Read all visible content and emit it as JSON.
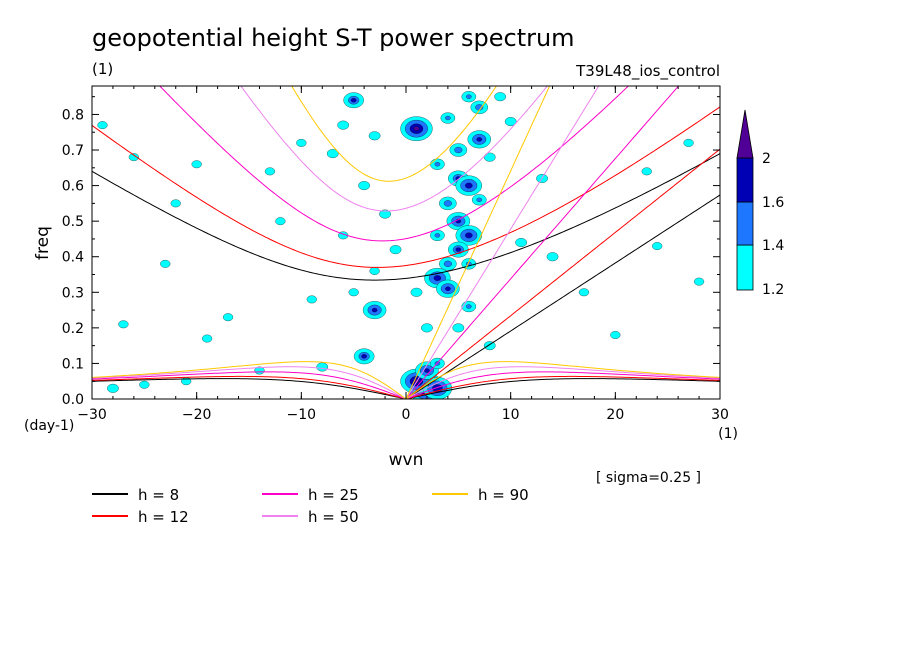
{
  "chart_data": {
    "type": "contour",
    "title": "geopotential height S-T power spectrum",
    "subtitle_left": "(1)",
    "subtitle_right": "T39L48_ios_control",
    "xlabel": "wvn",
    "ylabel": "freq",
    "x_unit": "(1)",
    "y_unit": "(day-1)",
    "sigma_note": "[ sigma=0.25 ]",
    "xlim": [
      -30,
      30
    ],
    "ylim": [
      0,
      0.88
    ],
    "x_ticks": [
      -30,
      -20,
      -10,
      0,
      10,
      20,
      30
    ],
    "y_ticks": [
      0.0,
      0.1,
      0.2,
      0.3,
      0.4,
      0.5,
      0.6,
      0.7,
      0.8
    ],
    "x_tick_labels": [
      "−30",
      "−20",
      "−10",
      "0",
      "10",
      "20",
      "30"
    ],
    "y_tick_labels": [
      "0.0",
      "0.1",
      "0.2",
      "0.3",
      "0.4",
      "0.5",
      "0.6",
      "0.7",
      "0.8"
    ],
    "colorbar": {
      "levels": [
        "1.2",
        "1.4",
        "1.6",
        "2"
      ],
      "colors": [
        "#00ffff",
        "#1e78ff",
        "#0000b4",
        "#500096"
      ]
    },
    "dispersion_curves": [
      {
        "name": "h =  8",
        "h": 8,
        "color": "#000000"
      },
      {
        "name": "h = 12",
        "h": 12,
        "color": "#ff0000"
      },
      {
        "name": "h = 25",
        "h": 25,
        "color": "#ff00c8"
      },
      {
        "name": "h = 50",
        "h": 50,
        "color": "#ee82ee"
      },
      {
        "name": "h = 90",
        "h": 90,
        "color": "#ffc800"
      }
    ],
    "spectral_peaks": [
      {
        "wvn": 2,
        "freq": 0.03,
        "level": 2.2
      },
      {
        "wvn": 1,
        "freq": 0.05,
        "level": 2.0
      },
      {
        "wvn": 2,
        "freq": 0.08,
        "level": 1.7
      },
      {
        "wvn": 3,
        "freq": 0.03,
        "level": 1.9
      },
      {
        "wvn": -4,
        "freq": 0.12,
        "level": 1.6
      },
      {
        "wvn": -3,
        "freq": 0.25,
        "level": 1.7
      },
      {
        "wvn": 1,
        "freq": 0.76,
        "level": 2.0
      },
      {
        "wvn": -5,
        "freq": 0.84,
        "level": 1.6
      },
      {
        "wvn": 3,
        "freq": 0.34,
        "level": 1.8
      },
      {
        "wvn": 4,
        "freq": 0.31,
        "level": 1.7
      },
      {
        "wvn": 5,
        "freq": 0.5,
        "level": 1.7
      },
      {
        "wvn": 6,
        "freq": 0.46,
        "level": 1.8
      },
      {
        "wvn": 7,
        "freq": 0.73,
        "level": 1.7
      },
      {
        "wvn": 7,
        "freq": 0.82,
        "level": 1.5
      },
      {
        "wvn": 5,
        "freq": 0.62,
        "level": 1.6
      },
      {
        "wvn": 6,
        "freq": 0.6,
        "level": 1.8
      },
      {
        "wvn": 5,
        "freq": 0.42,
        "level": 1.6
      },
      {
        "wvn": 4,
        "freq": 0.38,
        "level": 1.5
      },
      {
        "wvn": 4,
        "freq": 0.55,
        "level": 1.5
      },
      {
        "wvn": 5,
        "freq": 0.7,
        "level": 1.5
      },
      {
        "wvn": 6,
        "freq": 0.85,
        "level": 1.4
      },
      {
        "wvn": 4,
        "freq": 0.79,
        "level": 1.4
      },
      {
        "wvn": 3,
        "freq": 0.66,
        "level": 1.4
      },
      {
        "wvn": 6,
        "freq": 0.26,
        "level": 1.4
      },
      {
        "wvn": 5,
        "freq": 0.2,
        "level": 1.3
      },
      {
        "wvn": 6,
        "freq": 0.38,
        "level": 1.4
      },
      {
        "wvn": 3,
        "freq": 0.46,
        "level": 1.4
      },
      {
        "wvn": 7,
        "freq": 0.56,
        "level": 1.4
      },
      {
        "wvn": 8,
        "freq": 0.68,
        "level": 1.3
      },
      {
        "wvn": 3,
        "freq": 0.1,
        "level": 1.4
      },
      {
        "wvn": -3,
        "freq": 0.74,
        "level": 1.3
      },
      {
        "wvn": -6,
        "freq": 0.77,
        "level": 1.3
      },
      {
        "wvn": -7,
        "freq": 0.69,
        "level": 1.3
      },
      {
        "wvn": -4,
        "freq": 0.6,
        "level": 1.3
      },
      {
        "wvn": -2,
        "freq": 0.52,
        "level": 1.3
      },
      {
        "wvn": -1,
        "freq": 0.42,
        "level": 1.3
      },
      {
        "wvn": -3,
        "freq": 0.36,
        "level": 1.25
      },
      {
        "wvn": -5,
        "freq": 0.3,
        "level": 1.25
      },
      {
        "wvn": 1,
        "freq": 0.3,
        "level": 1.3
      },
      {
        "wvn": 2,
        "freq": 0.2,
        "level": 1.3
      },
      {
        "wvn": 8,
        "freq": 0.15,
        "level": 1.3
      },
      {
        "wvn": 11,
        "freq": 0.44,
        "level": 1.3
      },
      {
        "wvn": 14,
        "freq": 0.4,
        "level": 1.3
      },
      {
        "wvn": 13,
        "freq": 0.62,
        "level": 1.3
      },
      {
        "wvn": 17,
        "freq": 0.3,
        "level": 1.25
      },
      {
        "wvn": 23,
        "freq": 0.64,
        "level": 1.25
      },
      {
        "wvn": 27,
        "freq": 0.72,
        "level": 1.25
      },
      {
        "wvn": 24,
        "freq": 0.43,
        "level": 1.25
      },
      {
        "wvn": -28,
        "freq": 0.03,
        "level": 1.3
      },
      {
        "wvn": -25,
        "freq": 0.04,
        "level": 1.25
      },
      {
        "wvn": -26,
        "freq": 0.68,
        "level": 1.25
      },
      {
        "wvn": -22,
        "freq": 0.55,
        "level": 1.25
      },
      {
        "wvn": -20,
        "freq": 0.66,
        "level": 1.25
      },
      {
        "wvn": -23,
        "freq": 0.38,
        "level": 1.25
      },
      {
        "wvn": -13,
        "freq": 0.64,
        "level": 1.25
      },
      {
        "wvn": -10,
        "freq": 0.72,
        "level": 1.25
      },
      {
        "wvn": -17,
        "freq": 0.23,
        "level": 1.25
      },
      {
        "wvn": -12,
        "freq": 0.5,
        "level": 1.25
      },
      {
        "wvn": -29,
        "freq": 0.77,
        "level": 1.25
      },
      {
        "wvn": -8,
        "freq": 0.09,
        "level": 1.3
      },
      {
        "wvn": -14,
        "freq": 0.08,
        "level": 1.25
      },
      {
        "wvn": -21,
        "freq": 0.05,
        "level": 1.25
      },
      {
        "wvn": -27,
        "freq": 0.21,
        "level": 1.25
      },
      {
        "wvn": -19,
        "freq": 0.17,
        "level": 1.25
      },
      {
        "wvn": 28,
        "freq": 0.33,
        "level": 1.25
      },
      {
        "wvn": 20,
        "freq": 0.18,
        "level": 1.25
      },
      {
        "wvn": 9,
        "freq": 0.85,
        "level": 1.3
      },
      {
        "wvn": 10,
        "freq": 0.78,
        "level": 1.3
      },
      {
        "wvn": -6,
        "freq": 0.46,
        "level": 1.25
      },
      {
        "wvn": -9,
        "freq": 0.28,
        "level": 1.25
      }
    ]
  }
}
